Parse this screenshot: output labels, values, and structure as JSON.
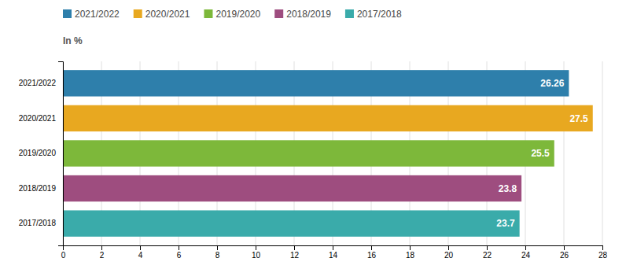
{
  "chart_data": {
    "type": "bar",
    "orientation": "horizontal",
    "xlabel": "In %",
    "categories": [
      "2021/2022",
      "2020/2021",
      "2019/2020",
      "2018/2019",
      "2017/2018"
    ],
    "values": [
      26.26,
      27.5,
      25.5,
      23.8,
      23.7
    ],
    "colors": [
      "#2e7fab",
      "#e8a820",
      "#7db83a",
      "#9e4d7f",
      "#3aabaa"
    ],
    "xlim": [
      0,
      28
    ],
    "xticks": [
      0,
      2,
      4,
      6,
      8,
      10,
      12,
      14,
      16,
      18,
      20,
      22,
      24,
      26,
      28
    ],
    "grid": true,
    "legend": "top left",
    "data_labels": true
  }
}
